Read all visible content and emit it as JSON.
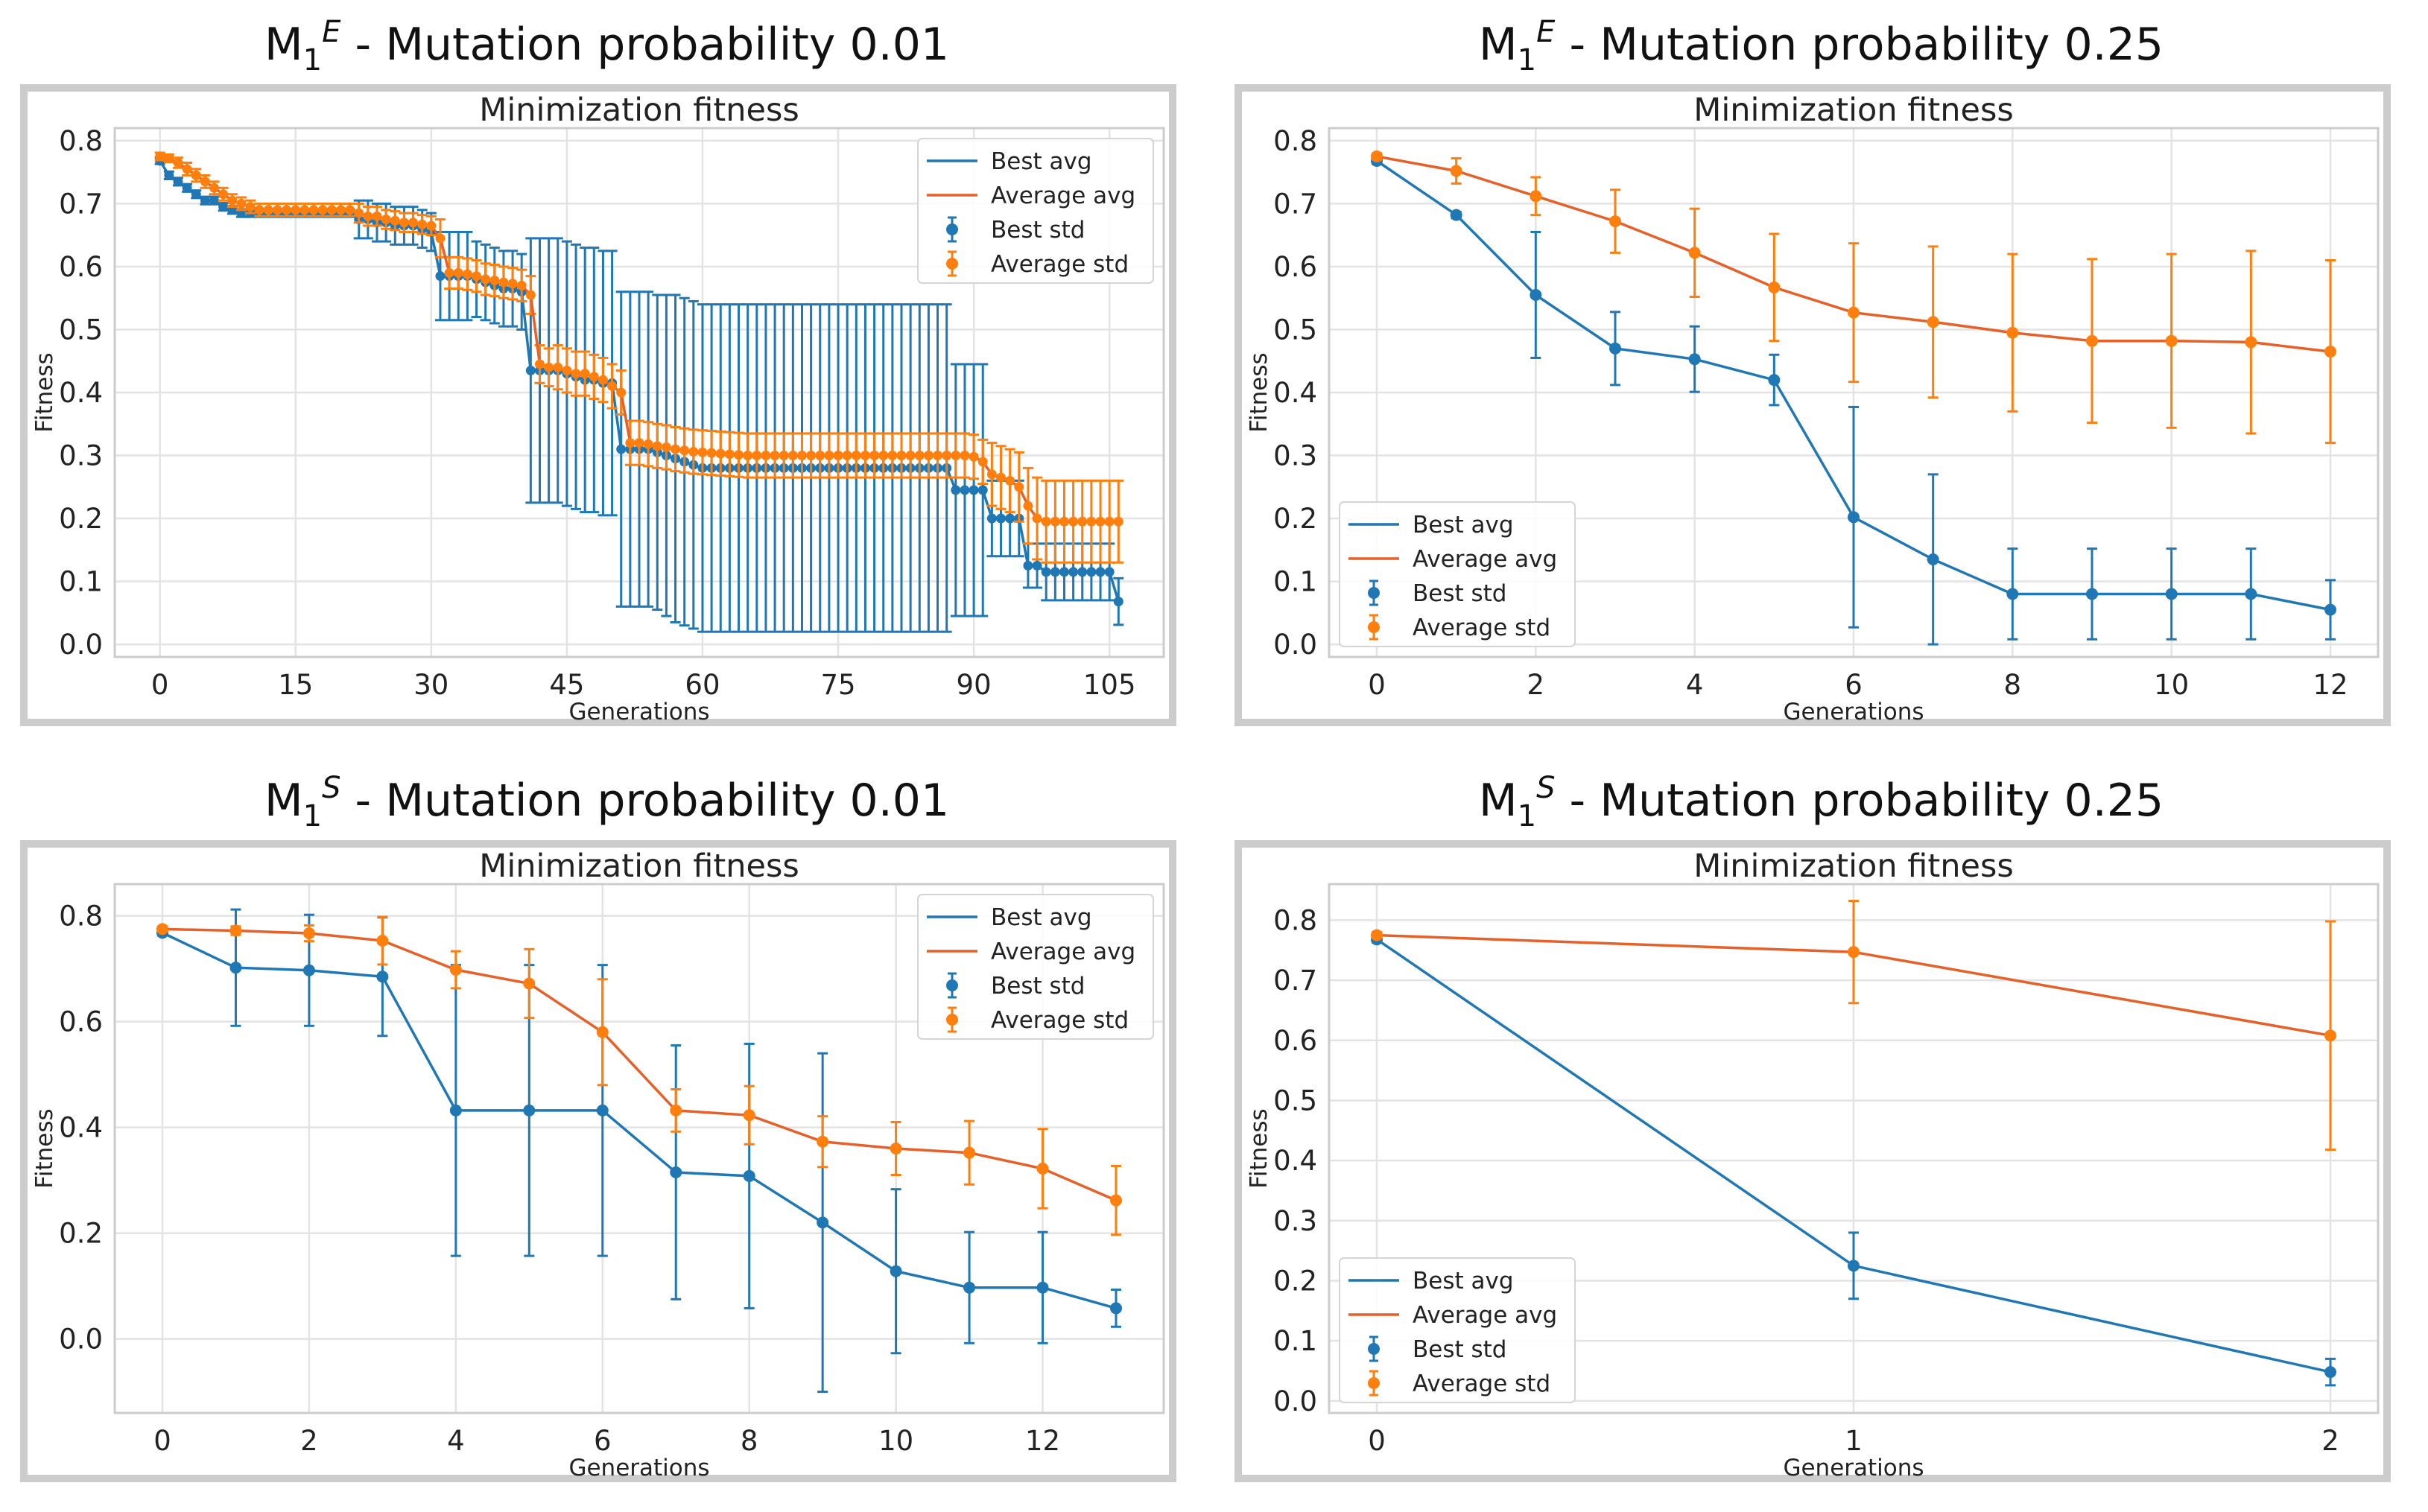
{
  "colors": {
    "best": "#1f77b4",
    "average": "#ff7f0e",
    "average_line": "#e6602a",
    "grid": "#e3e3e3",
    "frame": "#cccccc",
    "text": "#222222"
  },
  "chart_data": [
    {
      "type": "line",
      "figure_title": "M1E - Mutation probability 0.01",
      "title_base": "M",
      "title_sub": "1",
      "title_sup": "E",
      "title_rest": " - Mutation probability 0.01",
      "title": "Minimization fitness",
      "xlabel": "Generations",
      "ylabel": "Fitness",
      "xlim": [
        -5,
        111
      ],
      "ylim": [
        -0.02,
        0.82
      ],
      "xticks": [
        0,
        15,
        30,
        45,
        60,
        75,
        90,
        105
      ],
      "yticks": [
        0.0,
        0.1,
        0.2,
        0.3,
        0.4,
        0.5,
        0.6,
        0.7,
        0.8
      ],
      "ytick_labels": [
        "0.0",
        "0.1",
        "0.2",
        "0.3",
        "0.4",
        "0.5",
        "0.6",
        "0.7",
        "0.8"
      ],
      "legend": {
        "position": "top-right",
        "entries": [
          "Best avg",
          "Average avg",
          "Best std",
          "Average std"
        ]
      },
      "x": [
        0,
        1,
        2,
        3,
        4,
        5,
        6,
        7,
        8,
        9,
        10,
        11,
        12,
        13,
        14,
        15,
        16,
        17,
        18,
        19,
        20,
        21,
        22,
        23,
        24,
        25,
        26,
        27,
        28,
        29,
        30,
        31,
        32,
        33,
        34,
        35,
        36,
        37,
        38,
        39,
        40,
        41,
        42,
        43,
        44,
        45,
        46,
        47,
        48,
        49,
        50,
        51,
        52,
        53,
        54,
        55,
        56,
        57,
        58,
        59,
        60,
        61,
        62,
        63,
        64,
        65,
        66,
        67,
        68,
        69,
        70,
        71,
        72,
        73,
        74,
        75,
        76,
        77,
        78,
        79,
        80,
        81,
        82,
        83,
        84,
        85,
        86,
        87,
        88,
        89,
        90,
        91,
        92,
        93,
        94,
        95,
        96,
        97,
        98,
        99,
        100,
        101,
        102,
        103,
        104,
        105,
        106
      ],
      "series": [
        {
          "name": "Best avg",
          "values": [
            0.768,
            0.745,
            0.735,
            0.725,
            0.715,
            0.705,
            0.705,
            0.695,
            0.69,
            0.685,
            0.685,
            0.685,
            0.685,
            0.685,
            0.685,
            0.685,
            0.685,
            0.685,
            0.685,
            0.685,
            0.685,
            0.685,
            0.675,
            0.675,
            0.67,
            0.67,
            0.665,
            0.665,
            0.665,
            0.66,
            0.655,
            0.585,
            0.585,
            0.585,
            0.585,
            0.58,
            0.575,
            0.57,
            0.565,
            0.565,
            0.56,
            0.435,
            0.435,
            0.435,
            0.435,
            0.43,
            0.425,
            0.42,
            0.42,
            0.415,
            0.415,
            0.31,
            0.31,
            0.31,
            0.31,
            0.305,
            0.3,
            0.295,
            0.29,
            0.285,
            0.28,
            0.28,
            0.28,
            0.28,
            0.28,
            0.28,
            0.28,
            0.28,
            0.28,
            0.28,
            0.28,
            0.28,
            0.28,
            0.28,
            0.28,
            0.28,
            0.28,
            0.28,
            0.28,
            0.28,
            0.28,
            0.28,
            0.28,
            0.28,
            0.28,
            0.28,
            0.28,
            0.28,
            0.245,
            0.245,
            0.245,
            0.245,
            0.2,
            0.2,
            0.2,
            0.2,
            0.125,
            0.125,
            0.115,
            0.115,
            0.115,
            0.115,
            0.115,
            0.115,
            0.115,
            0.115,
            0.068
          ]
        },
        {
          "name": "Average avg",
          "values": [
            0.775,
            0.772,
            0.765,
            0.755,
            0.745,
            0.735,
            0.725,
            0.715,
            0.705,
            0.7,
            0.695,
            0.69,
            0.69,
            0.69,
            0.69,
            0.69,
            0.69,
            0.69,
            0.69,
            0.69,
            0.69,
            0.69,
            0.685,
            0.68,
            0.68,
            0.675,
            0.673,
            0.67,
            0.67,
            0.667,
            0.665,
            0.645,
            0.59,
            0.59,
            0.588,
            0.585,
            0.58,
            0.578,
            0.575,
            0.573,
            0.57,
            0.555,
            0.445,
            0.44,
            0.44,
            0.435,
            0.43,
            0.43,
            0.425,
            0.42,
            0.41,
            0.4,
            0.32,
            0.32,
            0.318,
            0.315,
            0.313,
            0.31,
            0.308,
            0.306,
            0.305,
            0.304,
            0.303,
            0.302,
            0.301,
            0.3,
            0.3,
            0.3,
            0.3,
            0.3,
            0.3,
            0.3,
            0.3,
            0.3,
            0.3,
            0.3,
            0.3,
            0.3,
            0.3,
            0.3,
            0.3,
            0.3,
            0.3,
            0.3,
            0.3,
            0.3,
            0.3,
            0.3,
            0.3,
            0.3,
            0.298,
            0.29,
            0.27,
            0.265,
            0.26,
            0.25,
            0.22,
            0.2,
            0.195,
            0.195,
            0.195,
            0.195,
            0.195,
            0.195,
            0.195,
            0.195,
            0.195
          ]
        }
      ],
      "errors": {
        "best_std": [
          0.005,
          0.006,
          0.006,
          0.006,
          0.006,
          0.006,
          0.006,
          0.006,
          0.006,
          0.006,
          0.006,
          0.006,
          0.006,
          0.006,
          0.006,
          0.006,
          0.006,
          0.006,
          0.006,
          0.006,
          0.006,
          0.006,
          0.03,
          0.03,
          0.03,
          0.03,
          0.03,
          0.03,
          0.03,
          0.03,
          0.03,
          0.07,
          0.07,
          0.07,
          0.07,
          0.06,
          0.06,
          0.06,
          0.06,
          0.06,
          0.06,
          0.21,
          0.21,
          0.21,
          0.21,
          0.21,
          0.21,
          0.21,
          0.21,
          0.21,
          0.21,
          0.25,
          0.25,
          0.25,
          0.25,
          0.25,
          0.255,
          0.26,
          0.26,
          0.26,
          0.26,
          0.26,
          0.26,
          0.26,
          0.26,
          0.26,
          0.26,
          0.26,
          0.26,
          0.26,
          0.26,
          0.26,
          0.26,
          0.26,
          0.26,
          0.26,
          0.26,
          0.26,
          0.26,
          0.26,
          0.26,
          0.26,
          0.26,
          0.26,
          0.26,
          0.26,
          0.26,
          0.26,
          0.2,
          0.2,
          0.2,
          0.2,
          0.06,
          0.06,
          0.06,
          0.06,
          0.035,
          0.035,
          0.045,
          0.045,
          0.045,
          0.045,
          0.045,
          0.045,
          0.045,
          0.045,
          0.037
        ],
        "average_std": [
          0.006,
          0.006,
          0.008,
          0.01,
          0.01,
          0.01,
          0.01,
          0.01,
          0.01,
          0.01,
          0.01,
          0.01,
          0.01,
          0.01,
          0.01,
          0.01,
          0.01,
          0.01,
          0.01,
          0.01,
          0.01,
          0.01,
          0.015,
          0.015,
          0.015,
          0.015,
          0.015,
          0.015,
          0.015,
          0.015,
          0.015,
          0.03,
          0.025,
          0.025,
          0.025,
          0.025,
          0.025,
          0.025,
          0.025,
          0.025,
          0.025,
          0.03,
          0.03,
          0.03,
          0.035,
          0.035,
          0.035,
          0.035,
          0.035,
          0.035,
          0.035,
          0.035,
          0.035,
          0.035,
          0.035,
          0.035,
          0.035,
          0.035,
          0.035,
          0.035,
          0.035,
          0.035,
          0.035,
          0.035,
          0.035,
          0.035,
          0.035,
          0.035,
          0.035,
          0.035,
          0.035,
          0.035,
          0.035,
          0.035,
          0.035,
          0.035,
          0.035,
          0.035,
          0.035,
          0.035,
          0.035,
          0.035,
          0.035,
          0.035,
          0.035,
          0.035,
          0.035,
          0.035,
          0.035,
          0.035,
          0.035,
          0.035,
          0.05,
          0.05,
          0.05,
          0.055,
          0.06,
          0.065,
          0.065,
          0.065,
          0.065,
          0.065,
          0.065,
          0.065,
          0.065,
          0.065,
          0.065
        ]
      }
    },
    {
      "type": "line",
      "figure_title": "M1E - Mutation probability 0.25",
      "title_base": "M",
      "title_sub": "1",
      "title_sup": "E",
      "title_rest": " - Mutation probability 0.25",
      "title": "Minimization fitness",
      "xlabel": "Generations",
      "ylabel": "Fitness",
      "xlim": [
        -0.6,
        12.6
      ],
      "ylim": [
        -0.02,
        0.82
      ],
      "xticks": [
        0,
        2,
        4,
        6,
        8,
        10,
        12
      ],
      "yticks": [
        0.0,
        0.1,
        0.2,
        0.3,
        0.4,
        0.5,
        0.6,
        0.7,
        0.8
      ],
      "ytick_labels": [
        "0.0",
        "0.1",
        "0.2",
        "0.3",
        "0.4",
        "0.5",
        "0.6",
        "0.7",
        "0.8"
      ],
      "legend": {
        "position": "bottom-left",
        "entries": [
          "Best avg",
          "Average avg",
          "Best std",
          "Average std"
        ]
      },
      "x": [
        0,
        1,
        2,
        3,
        4,
        5,
        6,
        7,
        8,
        9,
        10,
        11,
        12
      ],
      "series": [
        {
          "name": "Best avg",
          "values": [
            0.768,
            0.682,
            0.555,
            0.47,
            0.453,
            0.42,
            0.202,
            0.135,
            0.08,
            0.08,
            0.08,
            0.08,
            0.055
          ]
        },
        {
          "name": "Average avg",
          "values": [
            0.775,
            0.752,
            0.712,
            0.672,
            0.622,
            0.567,
            0.527,
            0.512,
            0.495,
            0.482,
            0.482,
            0.48,
            0.465
          ]
        }
      ],
      "errors": {
        "best_std": [
          0.005,
          0.005,
          0.1,
          0.058,
          0.052,
          0.04,
          0.175,
          0.135,
          0.072,
          0.072,
          0.072,
          0.072,
          0.047
        ],
        "average_std": [
          0.005,
          0.02,
          0.03,
          0.05,
          0.07,
          0.085,
          0.11,
          0.12,
          0.125,
          0.13,
          0.138,
          0.145,
          0.145
        ]
      }
    },
    {
      "type": "line",
      "figure_title": "M1S - Mutation probability 0.01",
      "title_base": "M",
      "title_sub": "1",
      "title_sup": "S",
      "title_rest": " - Mutation probability 0.01",
      "title": "Minimization fitness",
      "xlabel": "Generations",
      "ylabel": "Fitness",
      "xlim": [
        -0.65,
        13.65
      ],
      "ylim": [
        -0.14,
        0.86
      ],
      "xticks": [
        0,
        2,
        4,
        6,
        8,
        10,
        12
      ],
      "yticks": [
        0.0,
        0.2,
        0.4,
        0.6,
        0.8
      ],
      "ytick_labels": [
        "0.0",
        "0.2",
        "0.4",
        "0.6",
        "0.8"
      ],
      "legend": {
        "position": "top-right",
        "entries": [
          "Best avg",
          "Average avg",
          "Best std",
          "Average std"
        ]
      },
      "x": [
        0,
        1,
        2,
        3,
        4,
        5,
        6,
        7,
        8,
        9,
        10,
        11,
        12,
        13
      ],
      "series": [
        {
          "name": "Best avg",
          "values": [
            0.768,
            0.702,
            0.697,
            0.685,
            0.432,
            0.432,
            0.432,
            0.315,
            0.308,
            0.22,
            0.128,
            0.097,
            0.097,
            0.058
          ]
        },
        {
          "name": "Average avg",
          "values": [
            0.775,
            0.772,
            0.767,
            0.753,
            0.698,
            0.672,
            0.58,
            0.432,
            0.423,
            0.373,
            0.36,
            0.352,
            0.322,
            0.262
          ]
        },
        {
          "name": "Best std",
          "values": [
            0.005,
            0.11,
            0.105,
            0.112,
            0.275,
            0.275,
            0.275,
            0.24,
            0.25,
            0.32,
            0.155,
            0.105,
            0.105,
            0.035
          ]
        }
      ],
      "errors": {
        "best_std": [
          0.005,
          0.11,
          0.105,
          0.112,
          0.275,
          0.275,
          0.275,
          0.24,
          0.25,
          0.32,
          0.155,
          0.105,
          0.105,
          0.035
        ],
        "average_std": [
          0.005,
          0.008,
          0.015,
          0.045,
          0.035,
          0.065,
          0.1,
          0.04,
          0.055,
          0.048,
          0.05,
          0.06,
          0.075,
          0.065
        ]
      }
    },
    {
      "type": "line",
      "figure_title": "M1S - Mutation probability 0.25",
      "title_base": "M",
      "title_sub": "1",
      "title_sup": "S",
      "title_rest": " - Mutation probability 0.25",
      "title": "Minimization fitness",
      "xlabel": "Generations",
      "ylabel": "Fitness",
      "xlim": [
        -0.1,
        2.1
      ],
      "ylim": [
        -0.02,
        0.86
      ],
      "xticks": [
        0,
        1,
        2
      ],
      "yticks": [
        0.0,
        0.1,
        0.2,
        0.3,
        0.4,
        0.5,
        0.6,
        0.7,
        0.8
      ],
      "ytick_labels": [
        "0.0",
        "0.1",
        "0.2",
        "0.3",
        "0.4",
        "0.5",
        "0.6",
        "0.7",
        "0.8"
      ],
      "legend": {
        "position": "bottom-left",
        "entries": [
          "Best avg",
          "Average avg",
          "Best std",
          "Average std"
        ]
      },
      "x": [
        0,
        1,
        2
      ],
      "series": [
        {
          "name": "Best avg",
          "values": [
            0.768,
            0.225,
            0.048
          ]
        },
        {
          "name": "Average avg",
          "values": [
            0.775,
            0.747,
            0.608
          ]
        }
      ],
      "errors": {
        "best_std": [
          0.005,
          0.055,
          0.022
        ],
        "average_std": [
          0.005,
          0.085,
          0.19
        ]
      }
    }
  ]
}
